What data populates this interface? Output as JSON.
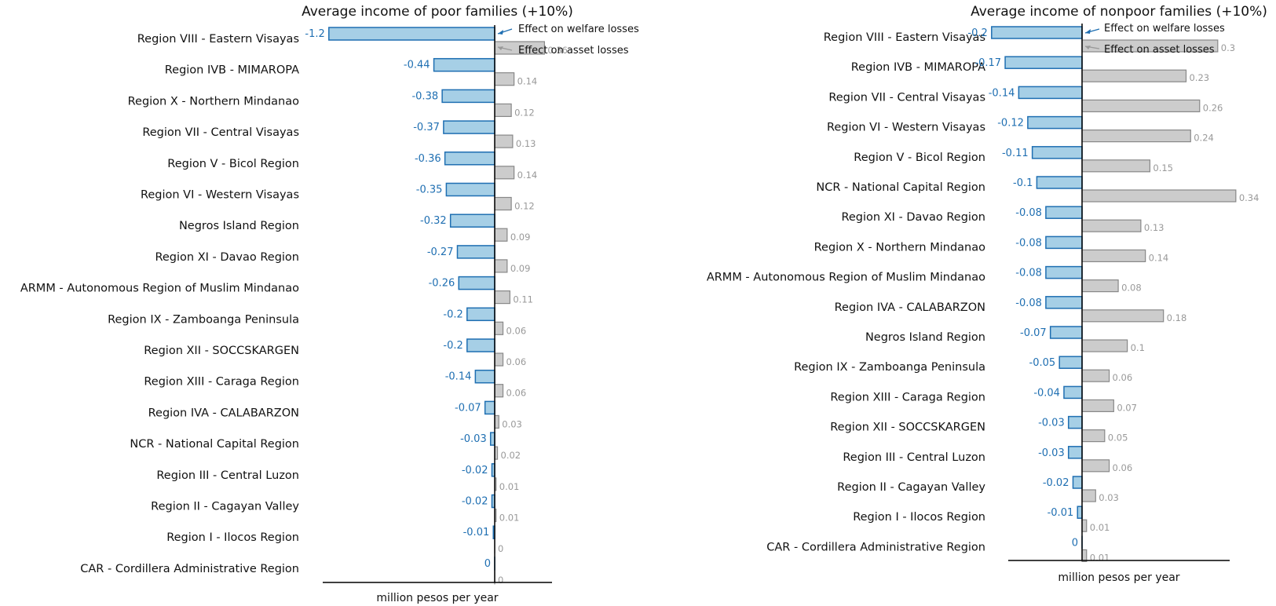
{
  "chart_data": [
    {
      "type": "bar",
      "title": "Average income of poor families (+10%)",
      "xlabel": "million pesos per year",
      "annotations": {
        "welfare": "Effect on welfare losses",
        "asset": "Effect on asset losses"
      },
      "colors": {
        "welfare_fill": "#a6cfe6",
        "welfare_stroke": "#1f6fb2",
        "welfare_text": "#1f6fb2",
        "asset_fill": "#cccccc",
        "asset_stroke": "#888888",
        "asset_text": "#999999"
      },
      "xlim": [
        -1.2,
        0.45
      ],
      "categories": [
        "Region VIII - Eastern Visayas",
        "Region IVB - MIMAROPA",
        "Region X - Northern Mindanao",
        "Region VII - Central Visayas",
        "Region V - Bicol Region",
        "Region VI - Western Visayas",
        "Negros Island Region",
        "Region XI - Davao Region",
        "ARMM - Autonomous Region of Muslim Mindanao",
        "Region IX - Zamboanga Peninsula",
        "Region XII - SOCCSKARGEN",
        "Region XIII - Caraga Region",
        "Region IVA - CALABARZON",
        "NCR - National Capital Region",
        "Region III - Central Luzon",
        "Region II - Cagayan Valley",
        "Region I - Ilocos Region",
        "CAR - Cordillera Administrative Region"
      ],
      "welfare": [
        -1.2,
        -0.44,
        -0.38,
        -0.37,
        -0.36,
        -0.35,
        -0.32,
        -0.27,
        -0.26,
        -0.2,
        -0.2,
        -0.14,
        -0.07,
        -0.03,
        -0.02,
        -0.02,
        -0.01,
        0
      ],
      "welfare_labels": [
        "-1.2",
        "-0.44",
        "-0.38",
        "-0.37",
        "-0.36",
        "-0.35",
        "-0.32",
        "-0.27",
        "-0.26",
        "-0.2",
        "-0.2",
        "-0.14",
        "-0.07",
        "-0.03",
        "-0.02",
        "-0.02",
        "-0.01",
        "0"
      ],
      "asset": [
        0.36,
        0.14,
        0.12,
        0.13,
        0.14,
        0.12,
        0.09,
        0.09,
        0.11,
        0.06,
        0.06,
        0.06,
        0.03,
        0.02,
        0.01,
        0.01,
        0,
        0
      ],
      "asset_labels": [
        "0.36",
        "0.14",
        "0.12",
        "0.13",
        "0.14",
        "0.12",
        "0.09",
        "0.09",
        "0.11",
        "0.06",
        "0.06",
        "0.06",
        "0.03",
        "0.02",
        "0.01",
        "0.01",
        "0",
        "0"
      ]
    },
    {
      "type": "bar",
      "title": "Average income of nonpoor families (+10%)",
      "xlabel": "million pesos per year",
      "annotations": {
        "welfare": "Effect on welfare losses",
        "asset": "Effect on asset losses"
      },
      "colors": {
        "welfare_fill": "#a6cfe6",
        "welfare_stroke": "#1f6fb2",
        "welfare_text": "#1f6fb2",
        "asset_fill": "#cccccc",
        "asset_stroke": "#888888",
        "asset_text": "#999999"
      },
      "xlim": [
        -0.22,
        0.45
      ],
      "categories": [
        "Region VIII - Eastern Visayas",
        "Region IVB - MIMAROPA",
        "Region VII - Central Visayas",
        "Region VI - Western Visayas",
        "Region V - Bicol Region",
        "NCR - National Capital Region",
        "Region XI - Davao Region",
        "Region X - Northern Mindanao",
        "ARMM - Autonomous Region of Muslim Mindanao",
        "Region IVA - CALABARZON",
        "Negros Island Region",
        "Region IX - Zamboanga Peninsula",
        "Region XIII - Caraga Region",
        "Region XII - SOCCSKARGEN",
        "Region III - Central Luzon",
        "Region II - Cagayan Valley",
        "Region I - Ilocos Region",
        "CAR - Cordillera Administrative Region"
      ],
      "welfare": [
        -0.2,
        -0.17,
        -0.14,
        -0.12,
        -0.11,
        -0.1,
        -0.08,
        -0.08,
        -0.08,
        -0.08,
        -0.07,
        -0.05,
        -0.04,
        -0.03,
        -0.03,
        -0.02,
        -0.01,
        0
      ],
      "welfare_labels": [
        "-0.2",
        "-0.17",
        "-0.14",
        "-0.12",
        "-0.11",
        "-0.1",
        "-0.08",
        "-0.08",
        "-0.08",
        "-0.08",
        "-0.07",
        "-0.05",
        "-0.04",
        "-0.03",
        "-0.03",
        "-0.02",
        "-0.01",
        "0"
      ],
      "asset": [
        0.3,
        0.23,
        0.26,
        0.24,
        0.15,
        0.34,
        0.13,
        0.14,
        0.08,
        0.18,
        0.1,
        0.06,
        0.07,
        0.05,
        0.06,
        0.03,
        0.01,
        0.01
      ],
      "asset_labels": [
        "0.3",
        "0.23",
        "0.26",
        "0.24",
        "0.15",
        "0.34",
        "0.13",
        "0.14",
        "0.08",
        "0.18",
        "0.1",
        "0.06",
        "0.07",
        "0.05",
        "0.06",
        "0.03",
        "0.01",
        "0.01"
      ]
    }
  ]
}
